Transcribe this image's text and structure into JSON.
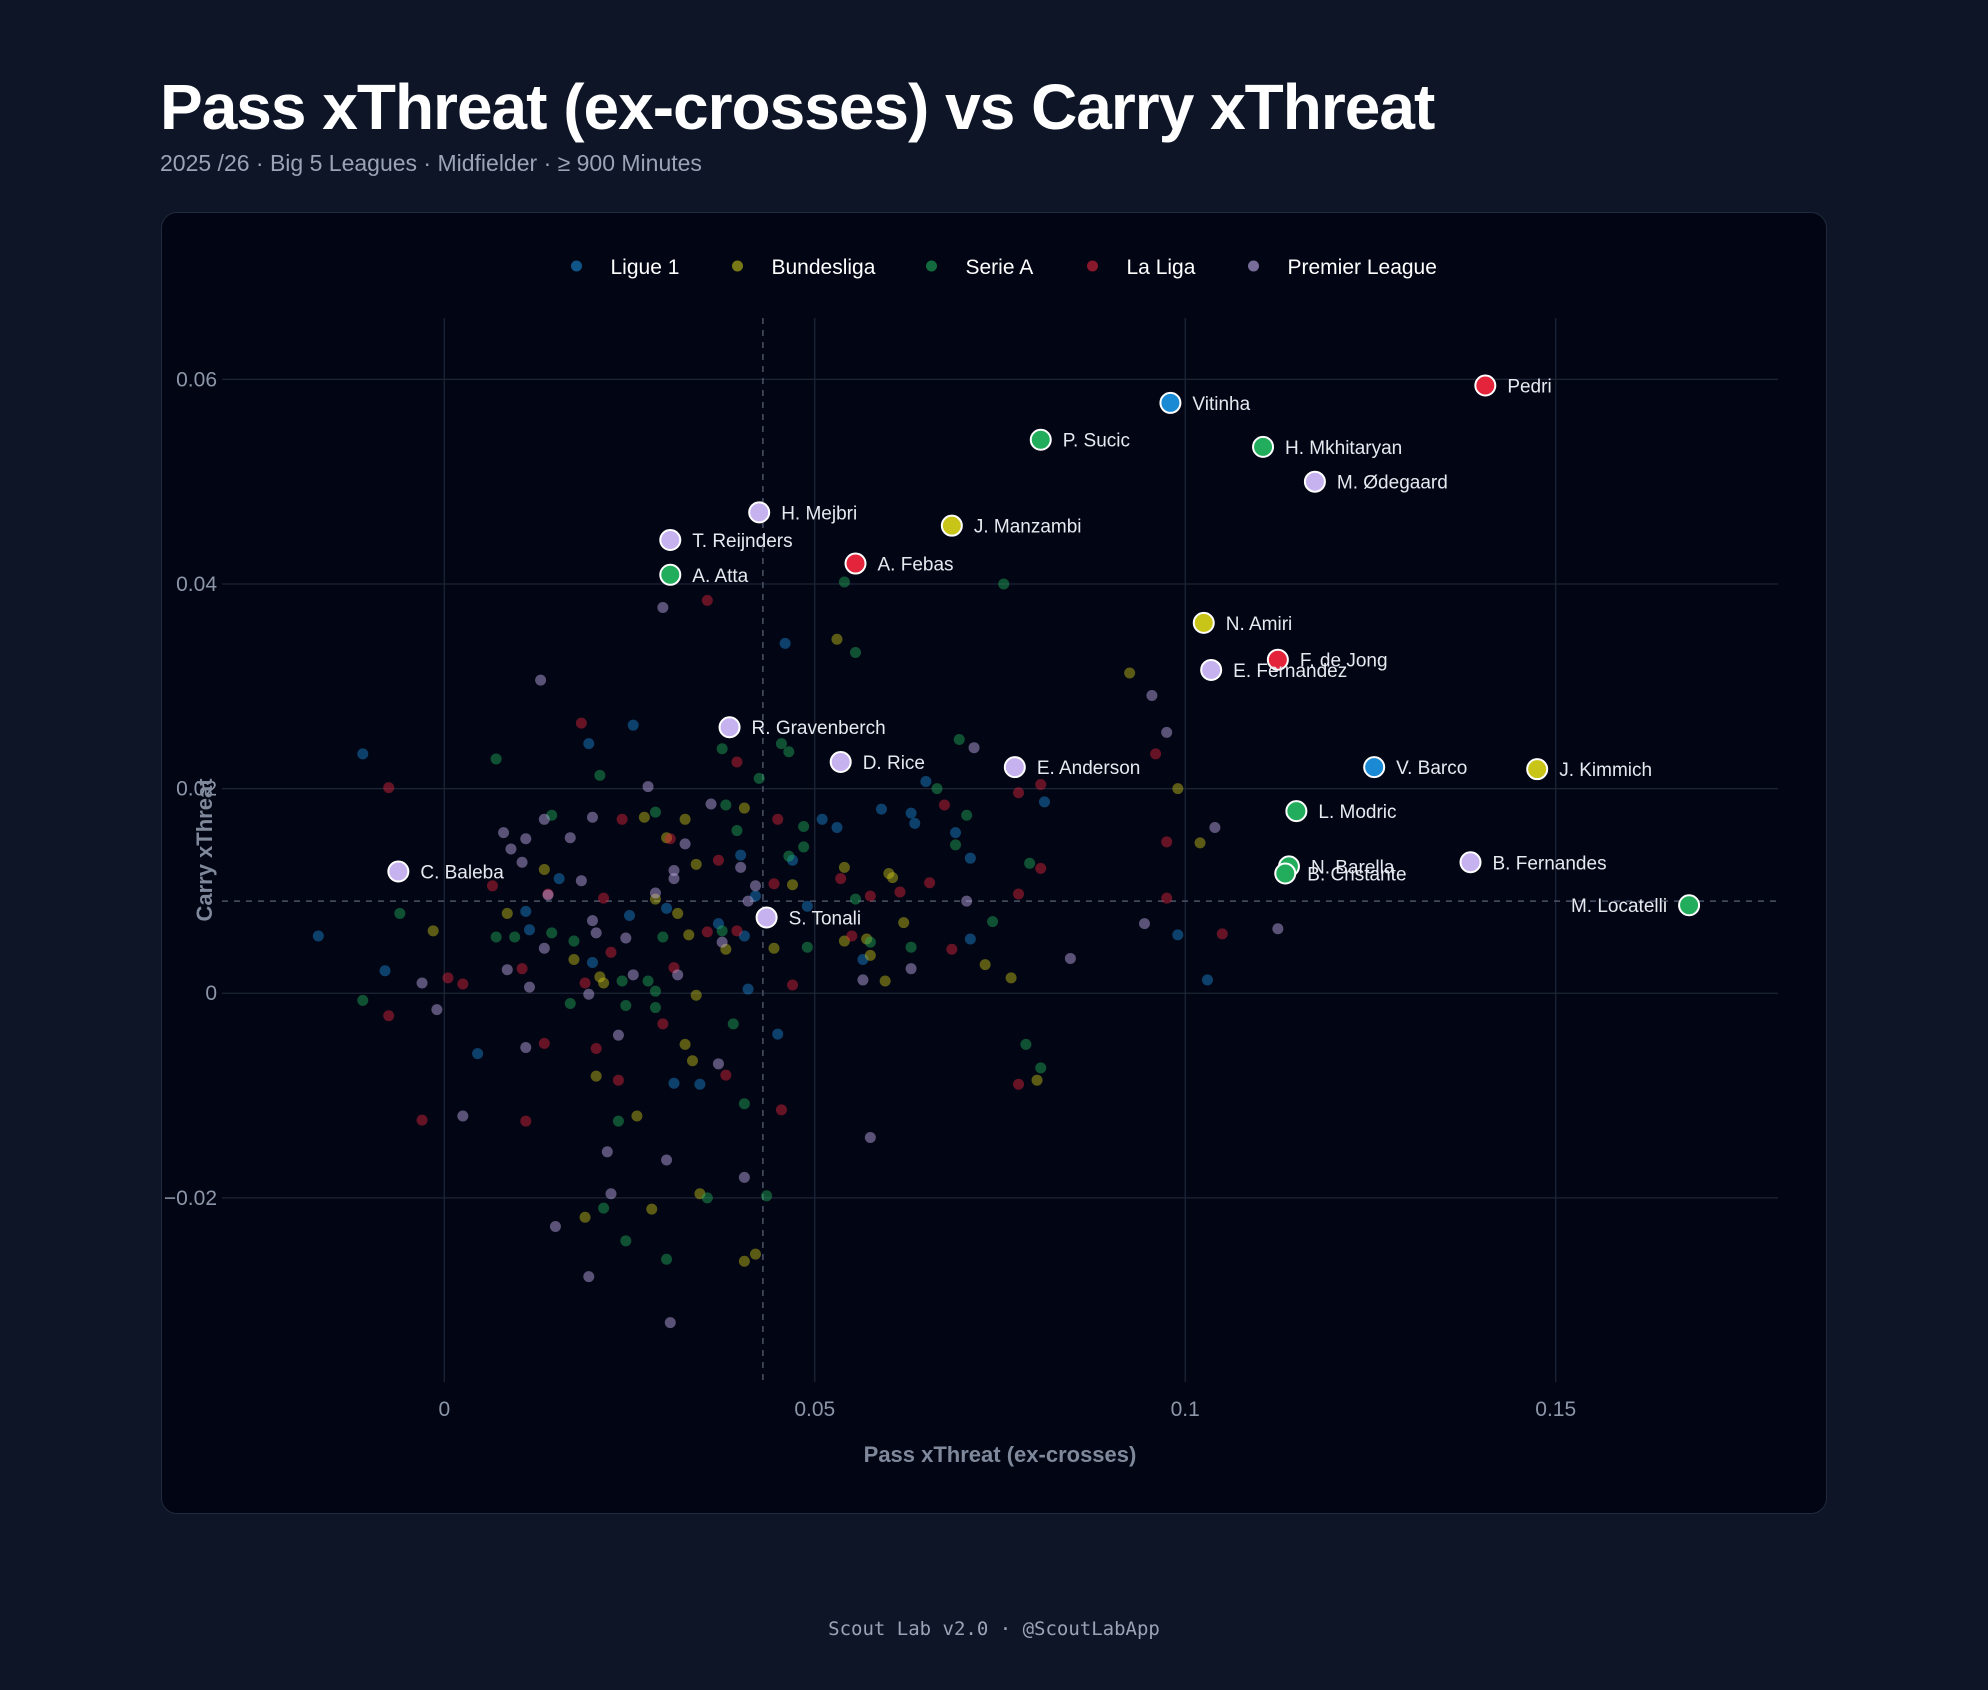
{
  "header": {
    "title": "Pass xThreat (ex-crosses) vs Carry xThreat",
    "subtitle": "2025 /26  · Big 5 Leagues  · Midfielder   · ≥ 900  Minutes"
  },
  "footer": {
    "text": "Scout Lab v2.0 · @ScoutLabApp"
  },
  "chart_data": {
    "type": "scatter",
    "title": "Pass xThreat (ex-crosses) vs Carry xThreat",
    "xlabel": "Pass xThreat (ex-crosses)",
    "ylabel": "Carry xThreat",
    "xlim": [
      -0.03,
      0.18
    ],
    "ylim": [
      -0.038,
      0.066
    ],
    "xticks": [
      0,
      0.05,
      0.1,
      0.15
    ],
    "xtick_labels": [
      "0",
      "0.05",
      "0.1",
      "0.15"
    ],
    "yticks": [
      -0.02,
      0,
      0.02,
      0.04,
      0.06
    ],
    "ytick_labels": [
      "−0.02",
      "0",
      "0.02",
      "0.04",
      "0.06"
    ],
    "grid": true,
    "legend_position": "top",
    "reference_lines": {
      "x_median": 0.043,
      "y_median": 0.009
    },
    "series": [
      {
        "name": "Ligue 1",
        "color": "#1a8ad4"
      },
      {
        "name": "Bundesliga",
        "color": "#c9c418"
      },
      {
        "name": "Serie A",
        "color": "#22ad5c"
      },
      {
        "name": "La Liga",
        "color": "#e3243b"
      },
      {
        "name": "Premier League",
        "color": "#c7b2f0"
      }
    ],
    "highlighted_players": [
      {
        "name": "Pedri",
        "league": "La Liga",
        "x": 0.1405,
        "y": 0.0594,
        "label_side": "right"
      },
      {
        "name": "Vitinha",
        "league": "Ligue 1",
        "x": 0.098,
        "y": 0.0577,
        "label_side": "right"
      },
      {
        "name": "P. Sucic",
        "league": "Serie A",
        "x": 0.0805,
        "y": 0.0541,
        "label_side": "right"
      },
      {
        "name": "H. Mkhitaryan",
        "league": "Serie A",
        "x": 0.1105,
        "y": 0.0534,
        "label_side": "right"
      },
      {
        "name": "M. Ødegaard",
        "league": "Premier League",
        "x": 0.1175,
        "y": 0.05,
        "label_side": "right"
      },
      {
        "name": "H. Mejbri",
        "league": "Premier League",
        "x": 0.0425,
        "y": 0.047,
        "label_side": "right"
      },
      {
        "name": "J. Manzambi",
        "league": "Bundesliga",
        "x": 0.0685,
        "y": 0.0457,
        "label_side": "right"
      },
      {
        "name": "T. Reijnders",
        "league": "Premier League",
        "x": 0.0305,
        "y": 0.0443,
        "label_side": "right"
      },
      {
        "name": "A. Febas",
        "league": "La Liga",
        "x": 0.0555,
        "y": 0.042,
        "label_side": "right"
      },
      {
        "name": "A. Atta",
        "league": "Serie A",
        "x": 0.0305,
        "y": 0.0409,
        "label_side": "right"
      },
      {
        "name": "N. Amiri",
        "league": "Bundesliga",
        "x": 0.1025,
        "y": 0.0362,
        "label_side": "right"
      },
      {
        "name": "F. de Jong",
        "league": "La Liga",
        "x": 0.1125,
        "y": 0.0326,
        "label_side": "right"
      },
      {
        "name": "E. Fernandez",
        "league": "Premier League",
        "x": 0.1035,
        "y": 0.0316,
        "label_side": "right"
      },
      {
        "name": "R. Gravenberch",
        "league": "Premier League",
        "x": 0.0385,
        "y": 0.026,
        "label_side": "right"
      },
      {
        "name": "D. Rice",
        "league": "Premier League",
        "x": 0.0535,
        "y": 0.0226,
        "label_side": "right"
      },
      {
        "name": "E. Anderson",
        "league": "Premier League",
        "x": 0.077,
        "y": 0.0221,
        "label_side": "right"
      },
      {
        "name": "V. Barco",
        "league": "Ligue 1",
        "x": 0.1255,
        "y": 0.0221,
        "label_side": "right"
      },
      {
        "name": "J. Kimmich",
        "league": "Bundesliga",
        "x": 0.1475,
        "y": 0.0219,
        "label_side": "right"
      },
      {
        "name": "L. Modric",
        "league": "Serie A",
        "x": 0.115,
        "y": 0.0178,
        "label_side": "right"
      },
      {
        "name": "C. Baleba",
        "league": "Premier League",
        "x": -0.0062,
        "y": 0.0119,
        "label_side": "right"
      },
      {
        "name": "N. Barella",
        "league": "Serie A",
        "x": 0.114,
        "y": 0.0124,
        "label_side": "right"
      },
      {
        "name": "B. Cristante",
        "league": "Serie A",
        "x": 0.1135,
        "y": 0.0117,
        "label_side": "right"
      },
      {
        "name": "B. Fernandes",
        "league": "Premier League",
        "x": 0.1385,
        "y": 0.0128,
        "label_side": "right"
      },
      {
        "name": "M. Locatelli",
        "league": "Serie A",
        "x": 0.168,
        "y": 0.0086,
        "label_side": "left"
      },
      {
        "name": "S. Tonali",
        "league": "Premier League",
        "x": 0.0435,
        "y": 0.0074,
        "label_side": "right"
      }
    ],
    "other_points": {
      "Ligue 1": [
        [
          -0.011,
          0.0234
        ],
        [
          0.0195,
          0.0244
        ],
        [
          0.0255,
          0.0262
        ],
        [
          0.046,
          0.0342
        ],
        [
          0.051,
          0.017
        ],
        [
          0.053,
          0.0162
        ],
        [
          0.059,
          0.018
        ],
        [
          0.063,
          0.0176
        ],
        [
          0.0635,
          0.0166
        ],
        [
          0.065,
          0.0207
        ],
        [
          0.069,
          0.0157
        ],
        [
          0.071,
          0.0132
        ],
        [
          0.081,
          0.0187
        ],
        [
          0.04,
          0.0135
        ],
        [
          0.042,
          0.0095
        ],
        [
          0.047,
          0.013
        ],
        [
          0.0565,
          0.0033
        ],
        [
          0.071,
          0.0053
        ],
        [
          0.099,
          0.0057
        ],
        [
          0.103,
          0.0013
        ],
        [
          -0.017,
          0.0056
        ],
        [
          -0.008,
          0.0022
        ],
        [
          0.0045,
          -0.0059
        ],
        [
          0.011,
          0.008
        ],
        [
          0.02,
          0.003
        ],
        [
          0.025,
          0.0076
        ],
        [
          0.03,
          0.0083
        ],
        [
          0.031,
          -0.0088
        ],
        [
          0.0345,
          -0.0089
        ],
        [
          0.045,
          -0.004
        ],
        [
          0.041,
          0.0004
        ],
        [
          0.037,
          0.0068
        ],
        [
          0.0405,
          0.0056
        ],
        [
          0.049,
          0.0085
        ],
        [
          0.0115,
          0.0062
        ],
        [
          0.0155,
          0.0112
        ]
      ],
      "Bundesliga": [
        [
          0.053,
          0.0346
        ],
        [
          0.0925,
          0.0313
        ],
        [
          0.099,
          0.02
        ],
        [
          0.102,
          0.0147
        ],
        [
          0.0405,
          0.0181
        ],
        [
          0.0325,
          0.017
        ],
        [
          0.03,
          0.0152
        ],
        [
          0.027,
          0.0172
        ],
        [
          0.034,
          0.0126
        ],
        [
          0.047,
          0.0106
        ],
        [
          0.054,
          0.0123
        ],
        [
          0.06,
          0.0117
        ],
        [
          0.0605,
          0.0113
        ],
        [
          0.062,
          0.0069
        ],
        [
          0.0575,
          0.0037
        ],
        [
          0.054,
          0.0051
        ],
        [
          0.057,
          0.0053
        ],
        [
          0.0445,
          0.0044
        ],
        [
          0.038,
          0.0043
        ],
        [
          0.033,
          0.0057
        ],
        [
          0.0085,
          0.0078
        ],
        [
          -0.0015,
          0.0061
        ],
        [
          0.0135,
          0.0121
        ],
        [
          0.0175,
          0.0033
        ],
        [
          0.021,
          0.0016
        ],
        [
          0.0215,
          0.001
        ],
        [
          0.0285,
          0.0092
        ],
        [
          0.0315,
          0.0078
        ],
        [
          0.034,
          -0.0002
        ],
        [
          0.0325,
          -0.005
        ],
        [
          0.0335,
          -0.0066
        ],
        [
          0.0205,
          -0.0081
        ],
        [
          0.026,
          -0.012
        ],
        [
          0.028,
          -0.0211
        ],
        [
          0.0345,
          -0.0196
        ],
        [
          0.042,
          -0.0255
        ],
        [
          0.0405,
          -0.0262
        ],
        [
          0.019,
          -0.0219
        ],
        [
          0.0595,
          0.0012
        ],
        [
          0.073,
          0.0028
        ],
        [
          0.0765,
          0.0015
        ],
        [
          0.08,
          -0.0085
        ]
      ],
      "Serie A": [
        [
          0.054,
          0.0402
        ],
        [
          0.0755,
          0.04
        ],
        [
          0.0555,
          0.0333
        ],
        [
          0.0455,
          0.0244
        ],
        [
          0.0465,
          0.0236
        ],
        [
          0.0375,
          0.0239
        ],
        [
          0.0695,
          0.0248
        ],
        [
          0.0425,
          0.021
        ],
        [
          0.021,
          0.0213
        ],
        [
          0.007,
          0.0229
        ],
        [
          0.0665,
          0.02
        ],
        [
          0.0705,
          0.0174
        ],
        [
          0.0485,
          0.0163
        ],
        [
          0.0465,
          0.0134
        ],
        [
          0.0395,
          0.0159
        ],
        [
          0.038,
          0.0184
        ],
        [
          0.0285,
          0.0177
        ],
        [
          0.0145,
          0.0174
        ],
        [
          0.0485,
          0.0143
        ],
        [
          0.0555,
          0.0092
        ],
        [
          0.069,
          0.0145
        ],
        [
          0.079,
          0.0127
        ],
        [
          0.063,
          0.0045
        ],
        [
          0.074,
          0.007
        ],
        [
          0.0575,
          0.005
        ],
        [
          0.049,
          0.0045
        ],
        [
          0.0375,
          0.0061
        ],
        [
          0.0295,
          0.0055
        ],
        [
          -0.006,
          0.0078
        ],
        [
          0.007,
          0.0055
        ],
        [
          0.0095,
          0.0055
        ],
        [
          0.0145,
          0.0059
        ],
        [
          0.0175,
          0.0051
        ],
        [
          0.024,
          0.0012
        ],
        [
          0.0275,
          0.0012
        ],
        [
          0.0285,
          -0.0014
        ],
        [
          0.0245,
          -0.0012
        ],
        [
          0.017,
          -0.001
        ],
        [
          -0.011,
          -0.0007
        ],
        [
          0.039,
          -0.003
        ],
        [
          0.0405,
          -0.0108
        ],
        [
          0.0235,
          -0.0125
        ],
        [
          0.0215,
          -0.021
        ],
        [
          0.0355,
          -0.02
        ],
        [
          0.0435,
          -0.0198
        ],
        [
          0.03,
          -0.026
        ],
        [
          0.0785,
          -0.005
        ],
        [
          0.0805,
          -0.0073
        ],
        [
          0.0245,
          -0.0242
        ],
        [
          0.0285,
          0.0002
        ]
      ],
      "La Liga": [
        [
          0.0355,
          0.0384
        ],
        [
          0.0185,
          0.0264
        ],
        [
          0.0395,
          0.0226
        ],
        [
          0.096,
          0.0234
        ],
        [
          0.0805,
          0.0204
        ],
        [
          0.0775,
          0.0196
        ],
        [
          0.0675,
          0.0184
        ],
        [
          0.045,
          0.017
        ],
        [
          0.0305,
          0.0151
        ],
        [
          0.024,
          0.017
        ],
        [
          0.037,
          0.013
        ],
        [
          0.0655,
          0.0108
        ],
        [
          0.0535,
          0.0112
        ],
        [
          0.0445,
          0.0107
        ],
        [
          0.0805,
          0.0122
        ],
        [
          0.0975,
          0.0148
        ],
        [
          0.0575,
          0.0095
        ],
        [
          0.0615,
          0.0099
        ],
        [
          0.0775,
          0.0097
        ],
        [
          0.0975,
          0.0093
        ],
        [
          0.105,
          0.0058
        ],
        [
          0.0685,
          0.0043
        ],
        [
          0.055,
          0.0056
        ],
        [
          0.0395,
          0.0061
        ],
        [
          0.0355,
          0.006
        ],
        [
          0.031,
          0.0025
        ],
        [
          0.0225,
          0.004
        ],
        [
          0.019,
          0.001
        ],
        [
          0.0025,
          0.0009
        ],
        [
          0.0005,
          0.0015
        ],
        [
          -0.0075,
          -0.0022
        ],
        [
          -0.0075,
          0.0201
        ],
        [
          0.0065,
          0.0105
        ],
        [
          0.0105,
          0.0024
        ],
        [
          0.014,
          0.0097
        ],
        [
          0.0215,
          0.0093
        ],
        [
          0.0295,
          -0.003
        ],
        [
          0.038,
          -0.008
        ],
        [
          0.0455,
          -0.0114
        ],
        [
          0.0235,
          -0.0085
        ],
        [
          0.0205,
          -0.0054
        ],
        [
          0.0135,
          -0.0049
        ],
        [
          0.011,
          -0.0125
        ],
        [
          -0.003,
          -0.0124
        ],
        [
          0.0775,
          -0.0089
        ],
        [
          0.047,
          0.0008
        ]
      ],
      "Premier League": [
        [
          0.0295,
          0.0377
        ],
        [
          0.013,
          0.0306
        ],
        [
          0.0955,
          0.0291
        ],
        [
          0.0975,
          0.0255
        ],
        [
          0.0715,
          0.024
        ],
        [
          0.104,
          0.0162
        ],
        [
          0.0275,
          0.0202
        ],
        [
          0.036,
          0.0185
        ],
        [
          0.02,
          0.0172
        ],
        [
          0.0135,
          0.017
        ],
        [
          0.008,
          0.0157
        ],
        [
          0.011,
          0.0151
        ],
        [
          0.017,
          0.0152
        ],
        [
          0.009,
          0.0141
        ],
        [
          0.0105,
          0.0128
        ],
        [
          0.031,
          0.012
        ],
        [
          0.0325,
          0.0146
        ],
        [
          0.031,
          0.0112
        ],
        [
          0.04,
          0.0123
        ],
        [
          0.042,
          0.0105
        ],
        [
          0.0705,
          0.009
        ],
        [
          0.0945,
          0.0068
        ],
        [
          0.1125,
          0.0063
        ],
        [
          0.0845,
          0.0034
        ],
        [
          0.063,
          0.0024
        ],
        [
          0.0565,
          0.0013
        ],
        [
          0.041,
          0.009
        ],
        [
          0.0375,
          0.005
        ],
        [
          0.0245,
          0.0054
        ],
        [
          0.02,
          0.0071
        ],
        [
          0.0135,
          0.0044
        ],
        [
          0.014,
          0.0096
        ],
        [
          0.0085,
          0.0023
        ],
        [
          0.0115,
          0.0006
        ],
        [
          0.0195,
          -0.0001
        ],
        [
          0.0315,
          0.0018
        ],
        [
          0.0255,
          0.0018
        ],
        [
          -0.003,
          0.001
        ],
        [
          -0.001,
          -0.0016
        ],
        [
          0.011,
          -0.0053
        ],
        [
          0.0025,
          -0.012
        ],
        [
          0.037,
          -0.0069
        ],
        [
          0.0405,
          -0.018
        ],
        [
          0.03,
          -0.0163
        ],
        [
          0.022,
          -0.0155
        ],
        [
          0.0225,
          -0.0196
        ],
        [
          0.015,
          -0.0228
        ],
        [
          0.0195,
          -0.0277
        ],
        [
          0.0305,
          -0.0322
        ],
        [
          0.0575,
          -0.0141
        ],
        [
          0.0235,
          -0.0041
        ],
        [
          0.0205,
          0.0059
        ],
        [
          0.0285,
          0.0098
        ],
        [
          0.0185,
          0.011
        ]
      ]
    }
  }
}
